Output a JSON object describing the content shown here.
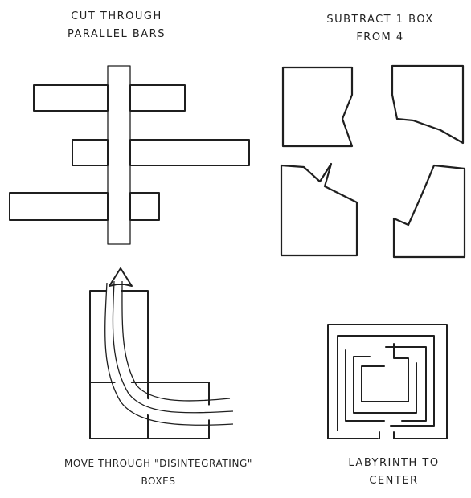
{
  "panels": [
    {
      "id": "cut-through-bars",
      "caption_lines": [
        "CUT THROUGH",
        "PARALLEL BARS"
      ]
    },
    {
      "id": "subtract-box",
      "caption_lines": [
        "SUBTRACT 1 BOX",
        "FROM 4"
      ]
    },
    {
      "id": "disintegrating-boxes",
      "caption_lines": [
        "MOVE THROUGH \"DISINTEGRATING\"",
        "BOXES"
      ]
    },
    {
      "id": "labyrinth",
      "caption_lines": [
        "LABYRINTH TO",
        "CENTER"
      ]
    }
  ],
  "colors": {
    "ink": "#1f1f1f",
    "paper": "#ffffff"
  }
}
